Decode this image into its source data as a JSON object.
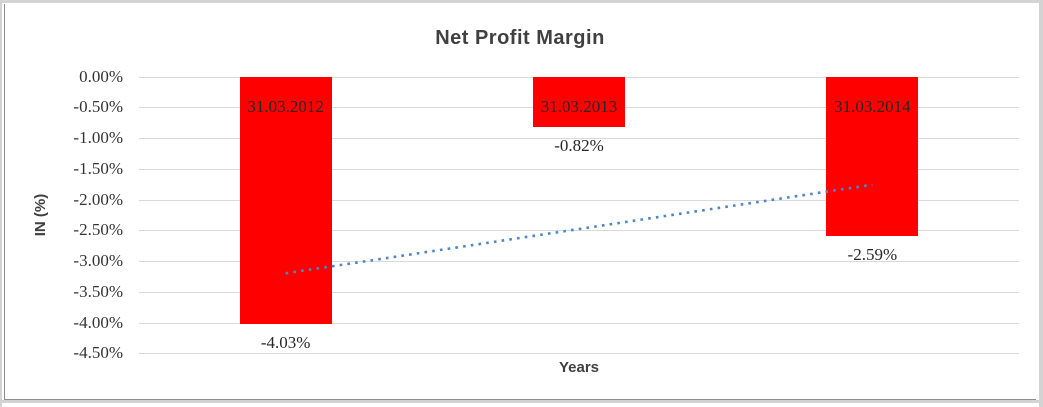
{
  "chart_data": {
    "type": "bar",
    "title": "Net Profit Margin",
    "xlabel": "Years",
    "ylabel": "IN (%)",
    "categories": [
      "31.03.2012",
      "31.03.2013",
      "31.03.2014"
    ],
    "values": [
      -4.03,
      -0.82,
      -2.59
    ],
    "value_labels": [
      "-4.03%",
      "-0.82%",
      "-2.59%"
    ],
    "ylim": [
      -4.5,
      0
    ],
    "ytick_step": 0.5,
    "ytick_labels": [
      "0.00%",
      "-0.50%",
      "-1.00%",
      "-1.50%",
      "-2.00%",
      "-2.50%",
      "-3.00%",
      "-3.50%",
      "-4.00%",
      "-4.50%"
    ],
    "grid": true,
    "legend": "none",
    "bar_color": "#FF0000",
    "gridline_color": "#D9D9D9",
    "label_text_color": "#262626",
    "heading_text_color": "#404040",
    "trendline": {
      "type": "linear",
      "style": "dotted",
      "color": "#4A86C8",
      "start_value": -3.2,
      "end_value": -1.76
    }
  }
}
